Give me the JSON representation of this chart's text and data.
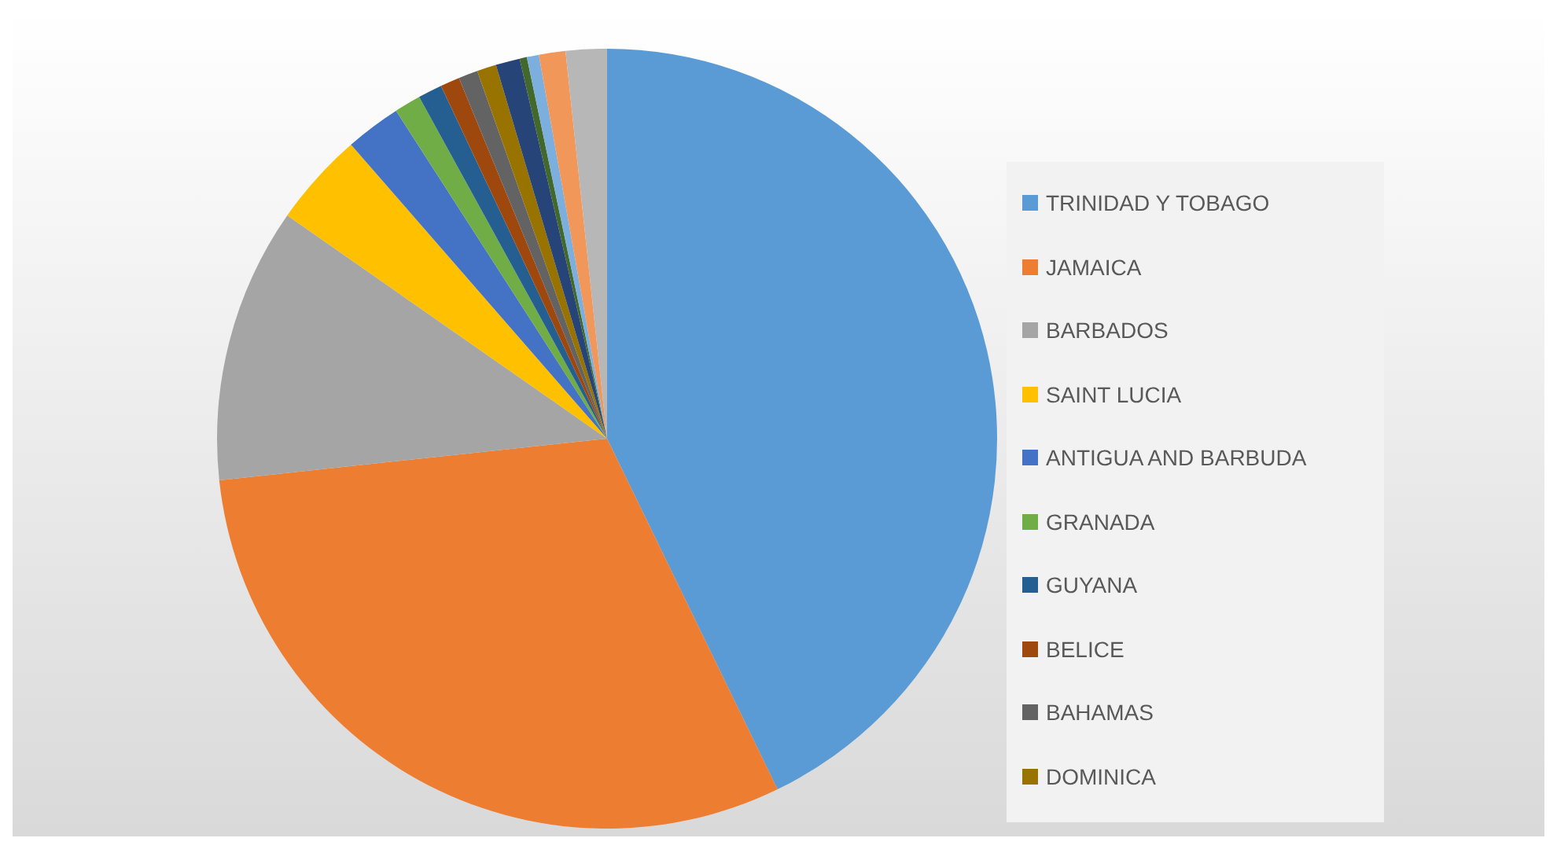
{
  "chart_data": {
    "type": "pie",
    "categories": [
      "TRINIDAD Y TOBAGO",
      "JAMAICA",
      "BARBADOS",
      "SAINT LUCIA",
      "ANTIGUA AND BARBUDA",
      "GRANADA",
      "GUYANA",
      "BELICE",
      "BAHAMAS",
      "DOMINICA",
      null,
      null,
      null,
      null,
      null
    ],
    "values": [
      42.8,
      30.5,
      11.4,
      3.9,
      2.3,
      1.1,
      1.0,
      0.8,
      0.8,
      0.8,
      1.0,
      0.3,
      0.5,
      1.1,
      1.7
    ],
    "colors": [
      "#5b9bd5",
      "#ed7d31",
      "#a5a5a5",
      "#ffc000",
      "#4472c4",
      "#70ad47",
      "#255e91",
      "#9e480e",
      "#636363",
      "#997300",
      "#264478",
      "#43682b",
      "#7cafdd",
      "#f1975a",
      "#b7b7b7"
    ],
    "legend": "right"
  }
}
